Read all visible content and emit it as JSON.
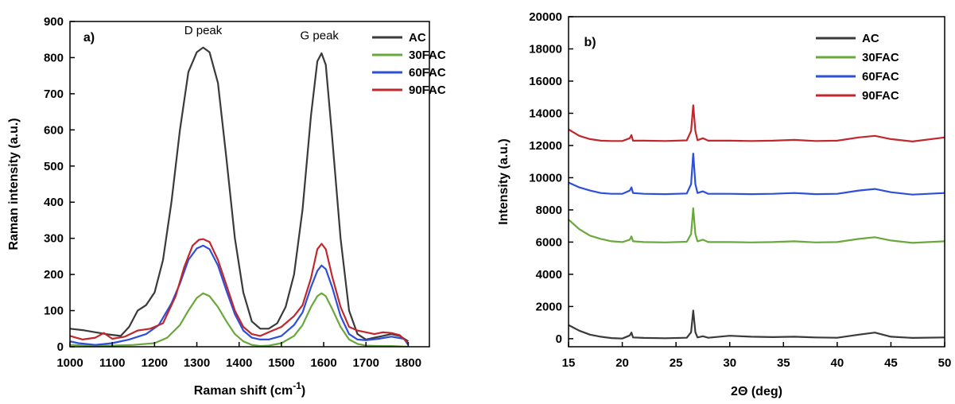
{
  "chart_data": [
    {
      "type": "line",
      "panel_label": "a)",
      "xlabel": "Raman shift (cm",
      "xlabel_sup": "-1",
      "xlabel_close": ")",
      "ylabel": "Raman intensity (a.u.)",
      "xlim": [
        1000,
        1850
      ],
      "ylim": [
        0,
        900
      ],
      "x_ticks": [
        "1000",
        "1100",
        "1200",
        "1300",
        "1400",
        "1500",
        "1600",
        "1700",
        "1800"
      ],
      "y_ticks": [
        "0",
        "100",
        "200",
        "300",
        "400",
        "500",
        "600",
        "700",
        "800",
        "900"
      ],
      "annotations": [
        {
          "text": "D peak",
          "x": 1315,
          "y": 865
        },
        {
          "text": "G peak",
          "x": 1590,
          "y": 850
        }
      ],
      "legend_position": "top-right",
      "series": [
        {
          "name": "AC",
          "color": "#3a3a3a",
          "x": [
            1000,
            1030,
            1060,
            1090,
            1120,
            1140,
            1160,
            1180,
            1200,
            1220,
            1240,
            1260,
            1280,
            1300,
            1315,
            1330,
            1350,
            1370,
            1390,
            1410,
            1430,
            1450,
            1470,
            1490,
            1510,
            1530,
            1550,
            1570,
            1585,
            1595,
            1605,
            1620,
            1640,
            1660,
            1680,
            1700,
            1720,
            1740,
            1760,
            1780,
            1800
          ],
          "y": [
            50,
            46,
            40,
            34,
            30,
            55,
            100,
            115,
            150,
            240,
            400,
            600,
            760,
            815,
            828,
            815,
            730,
            520,
            300,
            150,
            70,
            50,
            50,
            65,
            110,
            200,
            380,
            640,
            790,
            812,
            780,
            580,
            300,
            100,
            35,
            20,
            25,
            30,
            35,
            30,
            15
          ]
        },
        {
          "name": "30FAC",
          "color": "#6aa83c",
          "x": [
            1000,
            1050,
            1100,
            1150,
            1200,
            1230,
            1260,
            1280,
            1300,
            1315,
            1330,
            1350,
            1370,
            1390,
            1410,
            1430,
            1450,
            1470,
            1500,
            1530,
            1550,
            1570,
            1585,
            1595,
            1605,
            1620,
            1640,
            1660,
            1680,
            1700,
            1730,
            1760,
            1800
          ],
          "y": [
            5,
            3,
            3,
            5,
            10,
            25,
            60,
            100,
            135,
            148,
            140,
            110,
            70,
            35,
            15,
            5,
            2,
            3,
            10,
            30,
            60,
            110,
            140,
            148,
            140,
            105,
            55,
            20,
            8,
            3,
            2,
            2,
            0
          ]
        },
        {
          "name": "60FAC",
          "color": "#2e4fd9",
          "x": [
            1000,
            1020,
            1060,
            1100,
            1140,
            1180,
            1210,
            1240,
            1260,
            1280,
            1300,
            1315,
            1330,
            1350,
            1370,
            1390,
            1410,
            1430,
            1450,
            1470,
            1500,
            1530,
            1550,
            1570,
            1585,
            1595,
            1605,
            1620,
            1640,
            1660,
            1680,
            1700,
            1730,
            1760,
            1790,
            1800
          ],
          "y": [
            15,
            10,
            5,
            10,
            20,
            35,
            60,
            120,
            175,
            240,
            272,
            280,
            270,
            225,
            155,
            90,
            45,
            25,
            20,
            20,
            30,
            60,
            95,
            165,
            210,
            225,
            215,
            165,
            85,
            35,
            20,
            18,
            22,
            28,
            22,
            5
          ]
        },
        {
          "name": "90FAC",
          "color": "#c0282d",
          "x": [
            1000,
            1030,
            1060,
            1080,
            1100,
            1130,
            1160,
            1190,
            1220,
            1250,
            1270,
            1290,
            1305,
            1315,
            1330,
            1350,
            1370,
            1390,
            1410,
            1430,
            1450,
            1470,
            1500,
            1530,
            1550,
            1570,
            1585,
            1595,
            1605,
            1620,
            1640,
            1660,
            1680,
            1700,
            1720,
            1740,
            1760,
            1780,
            1800
          ],
          "y": [
            30,
            20,
            25,
            38,
            22,
            28,
            45,
            50,
            65,
            140,
            220,
            280,
            296,
            298,
            290,
            240,
            170,
            100,
            55,
            35,
            30,
            40,
            55,
            85,
            115,
            190,
            270,
            285,
            270,
            195,
            110,
            55,
            45,
            40,
            35,
            40,
            38,
            32,
            10
          ]
        }
      ]
    },
    {
      "type": "line",
      "panel_label": "b)",
      "xlabel": "2Θ (deg)",
      "ylabel": "Intensity (a.u.)",
      "xlim": [
        15,
        50
      ],
      "ylim": [
        -500,
        20000
      ],
      "x_ticks": [
        "15",
        "20",
        "25",
        "30",
        "35",
        "40",
        "45",
        "50"
      ],
      "y_ticks": [
        "0",
        "2000",
        "4000",
        "6000",
        "8000",
        "10000",
        "12000",
        "14000",
        "16000",
        "18000",
        "20000"
      ],
      "legend_position": "top-right",
      "series": [
        {
          "name": "AC",
          "color": "#3a3a3a",
          "x": [
            15,
            16,
            17,
            18,
            19,
            20,
            20.7,
            20.85,
            21,
            22,
            24,
            26,
            26.4,
            26.6,
            26.8,
            27,
            27.5,
            28,
            30,
            32,
            34,
            36,
            38,
            40,
            42,
            43.5,
            45,
            47,
            50
          ],
          "y": [
            850,
            500,
            250,
            120,
            40,
            10,
            200,
            380,
            80,
            50,
            30,
            60,
            400,
            1750,
            400,
            80,
            150,
            60,
            180,
            120,
            100,
            120,
            80,
            60,
            250,
            380,
            120,
            50,
            80
          ]
        },
        {
          "name": "30FAC",
          "color": "#6aa83c",
          "x": [
            15,
            16,
            17,
            18,
            19,
            20,
            20.7,
            20.85,
            21,
            22,
            24,
            26,
            26.4,
            26.6,
            26.8,
            27,
            27.5,
            28,
            30,
            32,
            34,
            36,
            38,
            40,
            42,
            43.5,
            45,
            47,
            50
          ],
          "y": [
            7400,
            6800,
            6400,
            6200,
            6050,
            6000,
            6150,
            6350,
            6050,
            6000,
            5980,
            6020,
            6500,
            8100,
            6500,
            6050,
            6150,
            6000,
            6000,
            5980,
            6000,
            6050,
            5980,
            6000,
            6200,
            6300,
            6100,
            5950,
            6050
          ]
        },
        {
          "name": "60FAC",
          "color": "#2e4fd9",
          "x": [
            15,
            16,
            17,
            18,
            19,
            20,
            20.7,
            20.85,
            21,
            22,
            24,
            26,
            26.4,
            26.6,
            26.8,
            27,
            27.5,
            28,
            30,
            32,
            34,
            36,
            38,
            40,
            42,
            43.5,
            45,
            47,
            50
          ],
          "y": [
            9700,
            9400,
            9200,
            9050,
            9000,
            9000,
            9200,
            9400,
            9050,
            9000,
            8980,
            9020,
            9600,
            11500,
            9600,
            9050,
            9150,
            9000,
            9000,
            8980,
            9000,
            9050,
            8980,
            9000,
            9200,
            9300,
            9100,
            8950,
            9050
          ]
        },
        {
          "name": "90FAC",
          "color": "#c0282d",
          "x": [
            15,
            16,
            17,
            18,
            19,
            20,
            20.7,
            20.85,
            21,
            22,
            24,
            26,
            26.4,
            26.6,
            26.8,
            27,
            27.5,
            28,
            30,
            32,
            34,
            36,
            38,
            40,
            42,
            43.5,
            45,
            47,
            50
          ],
          "y": [
            13000,
            12600,
            12400,
            12300,
            12280,
            12280,
            12450,
            12650,
            12300,
            12300,
            12280,
            12320,
            12900,
            14500,
            12900,
            12330,
            12450,
            12300,
            12300,
            12280,
            12300,
            12350,
            12280,
            12300,
            12500,
            12600,
            12400,
            12250,
            12500
          ]
        }
      ]
    }
  ]
}
